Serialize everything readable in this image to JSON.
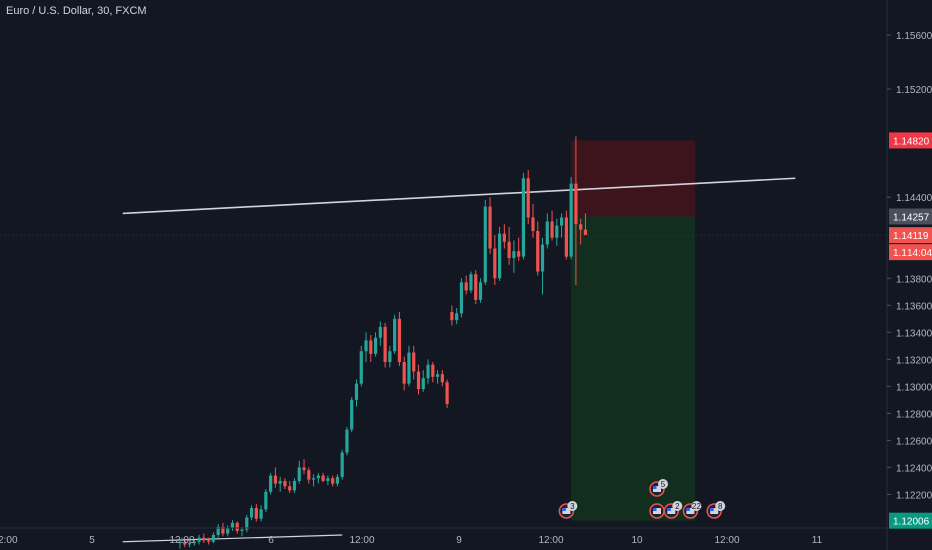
{
  "symbol_title": "Euro / U.S. Dollar, 30, FXCM",
  "colors": {
    "background": "#131722",
    "up": "#26a69a",
    "down": "#ef5350",
    "axis_text": "#b2b5be",
    "trendline": "#d1d4dc",
    "stop_zone": "#3f141b",
    "target_zone": "#112f1f",
    "stop_label": "#f23645",
    "target_label": "#089981",
    "entry_label": "#4a4f5c",
    "price_label": "#ef5350",
    "event_badge": "#ef5350"
  },
  "chart_data": {
    "type": "candlestick",
    "y_axis": {
      "ticks": [
        "1.15600",
        "1.15200",
        "1.14400",
        "1.13800",
        "1.13600",
        "1.13400",
        "1.13200",
        "1.13000",
        "1.12800",
        "1.12600",
        "1.12400",
        "1.12200"
      ],
      "range": [
        1.119,
        1.158
      ]
    },
    "x_axis": {
      "ticks": [
        "12:00",
        "5",
        "12:00",
        "6",
        "12:00",
        "9",
        "12:00",
        "10",
        "12:00",
        "11"
      ]
    },
    "price_labels": [
      {
        "value": "1.14820",
        "kind": "stop"
      },
      {
        "value": "1.14257",
        "kind": "entry"
      },
      {
        "value": "1.14119",
        "kind": "last"
      },
      {
        "value": "1.1",
        "countdown": "14:04",
        "kind": "countdown"
      },
      {
        "value": "1.12006",
        "kind": "target"
      }
    ],
    "position": {
      "side": "short",
      "entry": 1.14257,
      "stop": 1.1482,
      "target": 1.12006,
      "start_bar": 82,
      "end_bar": 108
    },
    "trendlines": [
      {
        "from_bar": -12,
        "from_price": 1.1428,
        "to_bar": 129,
        "to_price": 1.1454
      },
      {
        "from_bar": -12,
        "from_price": 1.1185,
        "to_bar": 34,
        "to_price": 1.119
      }
    ],
    "events": [
      {
        "bar": 81,
        "count": "3",
        "stack": 1
      },
      {
        "bar": 100,
        "count": "5",
        "stack": 2
      },
      {
        "bar": 103,
        "count": "2",
        "stack": 1
      },
      {
        "bar": 107,
        "count": "22",
        "stack": 1
      },
      {
        "bar": 112,
        "count": "8",
        "stack": 1
      }
    ],
    "candles": [
      [
        1.1184,
        1.1187,
        1.118,
        1.1185
      ],
      [
        1.1185,
        1.1186,
        1.1181,
        1.1183
      ],
      [
        1.1183,
        1.1185,
        1.1181,
        1.1184
      ],
      [
        1.1184,
        1.1186,
        1.1182,
        1.1185
      ],
      [
        1.1185,
        1.119,
        1.1183,
        1.1188
      ],
      [
        1.1188,
        1.1191,
        1.1184,
        1.1186
      ],
      [
        1.1186,
        1.1188,
        1.1183,
        1.1185
      ],
      [
        1.1185,
        1.1192,
        1.1184,
        1.119
      ],
      [
        1.119,
        1.1198,
        1.1188,
        1.1196
      ],
      [
        1.1196,
        1.1199,
        1.1189,
        1.1191
      ],
      [
        1.1191,
        1.1197,
        1.1189,
        1.1195
      ],
      [
        1.1195,
        1.1201,
        1.1193,
        1.1199
      ],
      [
        1.1199,
        1.12,
        1.1191,
        1.1193
      ],
      [
        1.1193,
        1.1196,
        1.1189,
        1.1194
      ],
      [
        1.1194,
        1.1205,
        1.1192,
        1.1203
      ],
      [
        1.1203,
        1.1212,
        1.1201,
        1.121
      ],
      [
        1.121,
        1.1213,
        1.12,
        1.1202
      ],
      [
        1.1202,
        1.1212,
        1.12,
        1.1209
      ],
      [
        1.1209,
        1.1224,
        1.1207,
        1.1222
      ],
      [
        1.1222,
        1.1236,
        1.122,
        1.1234
      ],
      [
        1.1234,
        1.124,
        1.1225,
        1.1228
      ],
      [
        1.1228,
        1.1233,
        1.1222,
        1.123
      ],
      [
        1.123,
        1.1232,
        1.1224,
        1.1226
      ],
      [
        1.1226,
        1.123,
        1.1221,
        1.1223
      ],
      [
        1.1223,
        1.1232,
        1.1221,
        1.123
      ],
      [
        1.123,
        1.1245,
        1.1228,
        1.124
      ],
      [
        1.124,
        1.1246,
        1.1235,
        1.1238
      ],
      [
        1.1238,
        1.124,
        1.1228,
        1.1231
      ],
      [
        1.1231,
        1.1235,
        1.1226,
        1.1232
      ],
      [
        1.1232,
        1.1236,
        1.1228,
        1.1234
      ],
      [
        1.1234,
        1.1236,
        1.1229,
        1.123
      ],
      [
        1.123,
        1.1234,
        1.1227,
        1.1232
      ],
      [
        1.1232,
        1.1234,
        1.1226,
        1.1228
      ],
      [
        1.1228,
        1.1235,
        1.1226,
        1.1233
      ],
      [
        1.1233,
        1.1253,
        1.1231,
        1.1251
      ],
      [
        1.1251,
        1.127,
        1.1249,
        1.1268
      ],
      [
        1.1268,
        1.1292,
        1.1266,
        1.129
      ],
      [
        1.129,
        1.1305,
        1.1285,
        1.1302
      ],
      [
        1.1302,
        1.133,
        1.13,
        1.1326
      ],
      [
        1.1326,
        1.134,
        1.1318,
        1.1334
      ],
      [
        1.1334,
        1.1338,
        1.1318,
        1.1324
      ],
      [
        1.1324,
        1.134,
        1.1322,
        1.1336
      ],
      [
        1.1336,
        1.1348,
        1.133,
        1.1344
      ],
      [
        1.1344,
        1.1347,
        1.1314,
        1.1318
      ],
      [
        1.1318,
        1.133,
        1.1314,
        1.1326
      ],
      [
        1.1326,
        1.1353,
        1.1324,
        1.135
      ],
      [
        1.135,
        1.1355,
        1.1315,
        1.1318
      ],
      [
        1.1318,
        1.1322,
        1.1297,
        1.1302
      ],
      [
        1.1302,
        1.133,
        1.13,
        1.1325
      ],
      [
        1.1325,
        1.133,
        1.1305,
        1.1311
      ],
      [
        1.1311,
        1.1316,
        1.1294,
        1.1298
      ],
      [
        1.1298,
        1.1312,
        1.1296,
        1.1306
      ],
      [
        1.1306,
        1.132,
        1.1302,
        1.1316
      ],
      [
        1.1316,
        1.1318,
        1.1303,
        1.1307
      ],
      [
        1.1307,
        1.1312,
        1.1302,
        1.1309
      ],
      [
        1.1309,
        1.1312,
        1.13,
        1.1303
      ],
      [
        1.1303,
        1.1305,
        1.1284,
        1.1287
      ],
      [
        1.1355,
        1.136,
        1.1345,
        1.1349
      ],
      [
        1.1349,
        1.1358,
        1.1346,
        1.1354
      ],
      [
        1.1354,
        1.138,
        1.1351,
        1.1377
      ],
      [
        1.1377,
        1.1382,
        1.1368,
        1.1371
      ],
      [
        1.1371,
        1.1385,
        1.1369,
        1.1383
      ],
      [
        1.1383,
        1.1386,
        1.1361,
        1.1364
      ],
      [
        1.1364,
        1.138,
        1.1362,
        1.1377
      ],
      [
        1.1377,
        1.1438,
        1.1375,
        1.1433
      ],
      [
        1.1433,
        1.144,
        1.1398,
        1.1402
      ],
      [
        1.1402,
        1.1412,
        1.1375,
        1.138
      ],
      [
        1.138,
        1.1418,
        1.1378,
        1.1413
      ],
      [
        1.1413,
        1.142,
        1.1402,
        1.1407
      ],
      [
        1.1407,
        1.1418,
        1.139,
        1.1395
      ],
      [
        1.1395,
        1.1408,
        1.1384,
        1.14
      ],
      [
        1.14,
        1.141,
        1.1393,
        1.1396
      ],
      [
        1.1396,
        1.1458,
        1.1394,
        1.1454
      ],
      [
        1.1454,
        1.146,
        1.142,
        1.1425
      ],
      [
        1.1425,
        1.1435,
        1.141,
        1.1415
      ],
      [
        1.1415,
        1.1422,
        1.1382,
        1.1385
      ],
      [
        1.1385,
        1.141,
        1.1368,
        1.1405
      ],
      [
        1.1405,
        1.1428,
        1.1402,
        1.1422
      ],
      [
        1.1422,
        1.143,
        1.1408,
        1.141
      ],
      [
        1.141,
        1.1424,
        1.1404,
        1.1419
      ],
      [
        1.1419,
        1.1428,
        1.141,
        1.1425
      ],
      [
        1.1425,
        1.143,
        1.1394,
        1.1396
      ],
      [
        1.1396,
        1.1455,
        1.1394,
        1.145
      ],
      [
        1.145,
        1.1485,
        1.1375,
        1.142
      ],
      [
        1.142,
        1.1424,
        1.1405,
        1.1416
      ],
      [
        1.1416,
        1.1428,
        1.1412,
        1.1412
      ]
    ]
  }
}
